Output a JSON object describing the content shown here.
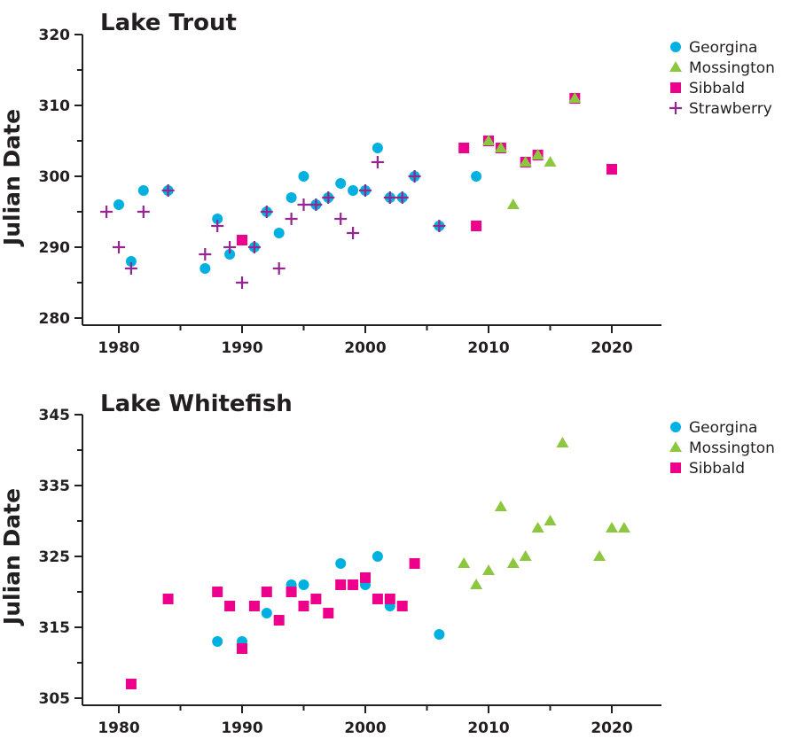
{
  "colors": {
    "Georgina": "#00b0e0",
    "Mossington": "#8dc63f",
    "Sibbald": "#ec008c",
    "Strawberry": "#92278f"
  },
  "chart_data": [
    {
      "type": "scatter",
      "title": "Lake Trout",
      "xlabel": "",
      "ylabel": "Julian Date",
      "xlim": [
        1977,
        2024
      ],
      "ylim": [
        279,
        320
      ],
      "xticks": [
        1980,
        1990,
        2000,
        2010,
        2020
      ],
      "yticks": [
        280,
        290,
        300,
        310,
        320
      ],
      "legend": "top-right",
      "series": [
        {
          "name": "Georgina",
          "marker": "circle",
          "x": [
            1980,
            1981,
            1982,
            1984,
            1987,
            1988,
            1989,
            1991,
            1992,
            1993,
            1994,
            1995,
            1996,
            1997,
            1998,
            1999,
            2000,
            2001,
            2002,
            2003,
            2004,
            2006,
            2009
          ],
          "y": [
            296,
            288,
            298,
            298,
            287,
            294,
            289,
            290,
            295,
            292,
            297,
            300,
            296,
            297,
            299,
            298,
            298,
            304,
            297,
            297,
            300,
            293,
            300
          ]
        },
        {
          "name": "Mossington",
          "marker": "triangle",
          "x": [
            2010,
            2011,
            2012,
            2013,
            2014,
            2015,
            2017
          ],
          "y": [
            305,
            304,
            296,
            302,
            303,
            302,
            311
          ]
        },
        {
          "name": "Sibbald",
          "marker": "square",
          "x": [
            1990,
            2008,
            2009,
            2010,
            2011,
            2013,
            2014,
            2017,
            2020
          ],
          "y": [
            291,
            304,
            293,
            305,
            304,
            302,
            303,
            311,
            301
          ]
        },
        {
          "name": "Strawberry",
          "marker": "plus",
          "x": [
            1979,
            1980,
            1981,
            1982,
            1984,
            1987,
            1988,
            1989,
            1990,
            1991,
            1992,
            1993,
            1994,
            1995,
            1996,
            1997,
            1998,
            1999,
            2000,
            2001,
            2002,
            2003,
            2004,
            2006
          ],
          "y": [
            295,
            290,
            287,
            295,
            298,
            289,
            293,
            290,
            285,
            290,
            295,
            287,
            294,
            296,
            296,
            297,
            294,
            292,
            298,
            302,
            297,
            297,
            300,
            293
          ]
        }
      ]
    },
    {
      "type": "scatter",
      "title": "Lake Whitefish",
      "xlabel": "",
      "ylabel": "Julian Date",
      "xlim": [
        1977,
        2024
      ],
      "ylim": [
        304,
        345
      ],
      "xticks": [
        1980,
        1990,
        2000,
        2010,
        2020
      ],
      "yticks": [
        305,
        315,
        325,
        335,
        345
      ],
      "legend": "top-right",
      "series": [
        {
          "name": "Georgina",
          "marker": "circle",
          "x": [
            1988,
            1990,
            1992,
            1994,
            1995,
            1998,
            2000,
            2001,
            2002,
            2006
          ],
          "y": [
            313,
            313,
            317,
            321,
            321,
            324,
            321,
            325,
            318,
            314
          ]
        },
        {
          "name": "Mossington",
          "marker": "triangle",
          "x": [
            2008,
            2009,
            2010,
            2011,
            2012,
            2013,
            2014,
            2015,
            2016,
            2019,
            2020,
            2021
          ],
          "y": [
            324,
            321,
            323,
            332,
            324,
            325,
            329,
            330,
            341,
            325,
            329,
            329
          ]
        },
        {
          "name": "Sibbald",
          "marker": "square",
          "x": [
            1981,
            1984,
            1988,
            1989,
            1990,
            1991,
            1992,
            1993,
            1994,
            1995,
            1996,
            1997,
            1998,
            1999,
            2000,
            2001,
            2002,
            2003,
            2004
          ],
          "y": [
            307,
            319,
            320,
            318,
            312,
            318,
            320,
            316,
            320,
            318,
            319,
            317,
            321,
            321,
            322,
            319,
            319,
            318,
            324
          ]
        }
      ]
    }
  ]
}
